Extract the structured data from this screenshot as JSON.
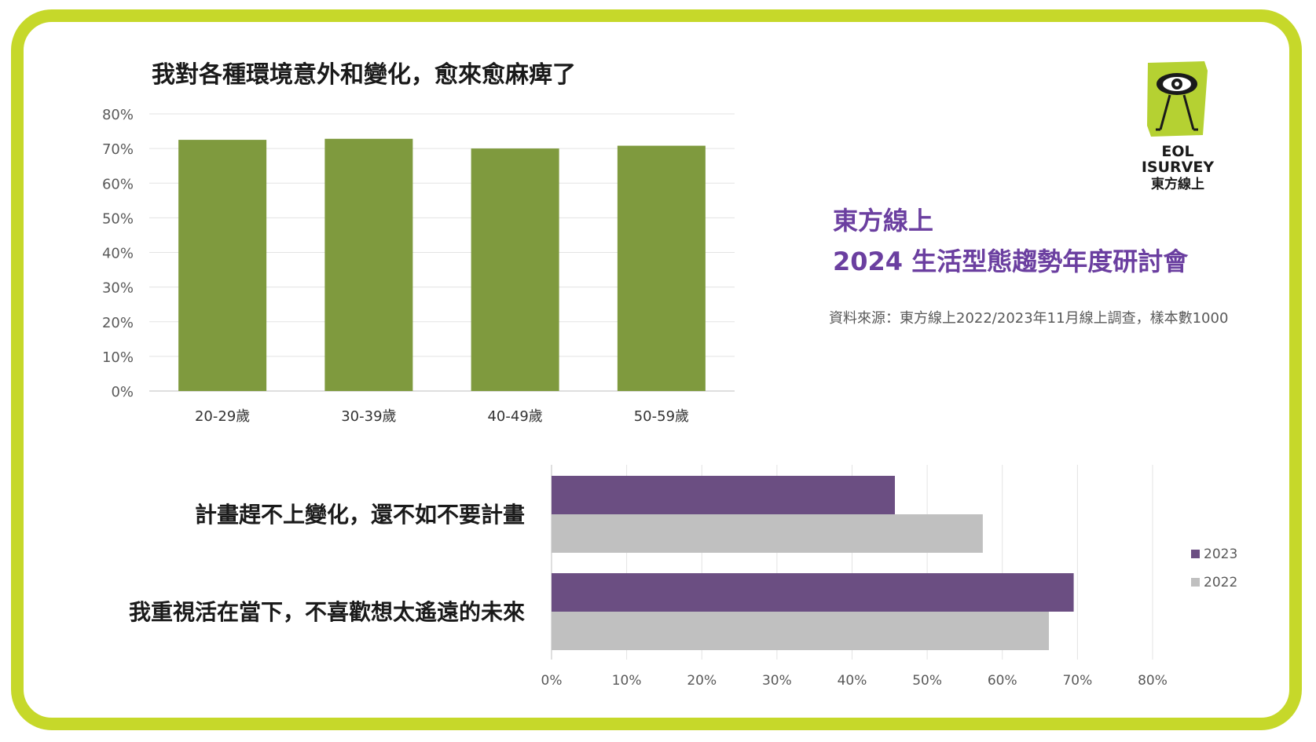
{
  "colors": {
    "frame": "#c6d82a",
    "bar_green": "#7f9a3e",
    "series_2023": "#6b4e82",
    "series_2022": "#c0c0c0",
    "heading_purple": "#6b3fa0",
    "logo_green": "#b5d132"
  },
  "logo": {
    "icon": "eye-figure-icon",
    "line1": "EOL",
    "line2": "ISURVEY",
    "line3": "東方線上"
  },
  "event": {
    "line1": "東方線上",
    "line2": "2024 生活型態趨勢年度研討會"
  },
  "source_note": "資料來源：東方線上2022/2023年11月線上調查，樣本數1000",
  "chart_data": [
    {
      "type": "bar",
      "title": "我對各種環境意外和變化，愈來愈麻痺了",
      "categories": [
        "20-29歲",
        "30-39歲",
        "40-49歲",
        "50-59歲"
      ],
      "values": [
        0.725,
        0.728,
        0.7,
        0.708
      ],
      "ylim": [
        0,
        0.8
      ],
      "yticks": [
        0,
        0.1,
        0.2,
        0.3,
        0.4,
        0.5,
        0.6,
        0.7,
        0.8
      ],
      "ytick_labels": [
        "0%",
        "10%",
        "20%",
        "30%",
        "40%",
        "50%",
        "60%",
        "70%",
        "80%"
      ],
      "grid": true,
      "legend": "none"
    },
    {
      "type": "bar",
      "orientation": "horizontal",
      "categories": [
        "計畫趕不上變化，還不如不要計畫",
        "我重視活在當下，不喜歡想太遙遠的未來"
      ],
      "series": [
        {
          "name": "2023",
          "values": [
            0.457,
            0.695
          ]
        },
        {
          "name": "2022",
          "values": [
            0.574,
            0.662
          ]
        }
      ],
      "xlim": [
        0,
        0.8
      ],
      "xticks": [
        0,
        0.1,
        0.2,
        0.3,
        0.4,
        0.5,
        0.6,
        0.7,
        0.8
      ],
      "xtick_labels": [
        "0%",
        "10%",
        "20%",
        "30%",
        "40%",
        "50%",
        "60%",
        "70%",
        "80%"
      ],
      "grid": true,
      "legend": "right"
    }
  ]
}
